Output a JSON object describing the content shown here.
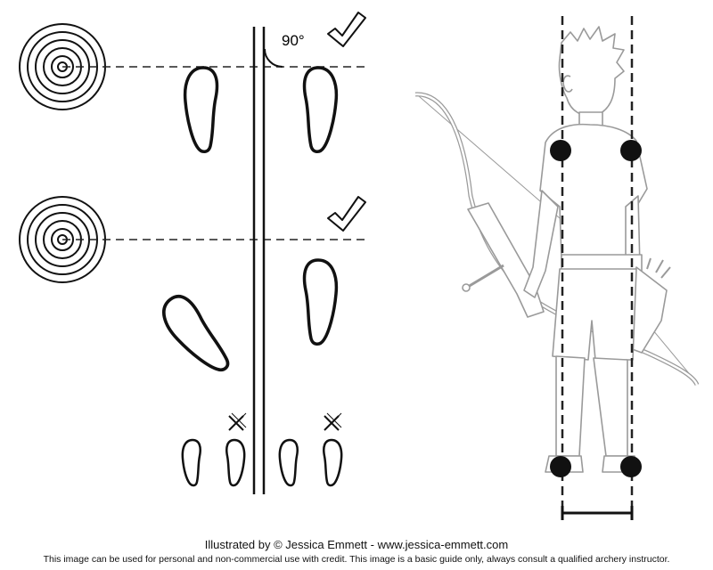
{
  "diagram": {
    "angle_label": "90°",
    "icons": {
      "target": "archery-target-icon",
      "correct": "checkmark-icon",
      "incorrect": "cross-icon",
      "foot": "footprint-icon"
    },
    "colors": {
      "ink": "#111111",
      "archer_line": "#9a9a9a",
      "dashed": "#222222"
    }
  },
  "credit": {
    "main": "Illustrated by © Jessica Emmett - www.jessica-emmett.com",
    "sub": "This image can be used for personal and non-commercial use with credit. This image is a basic guide only, always consult a qualified archery instructor."
  }
}
